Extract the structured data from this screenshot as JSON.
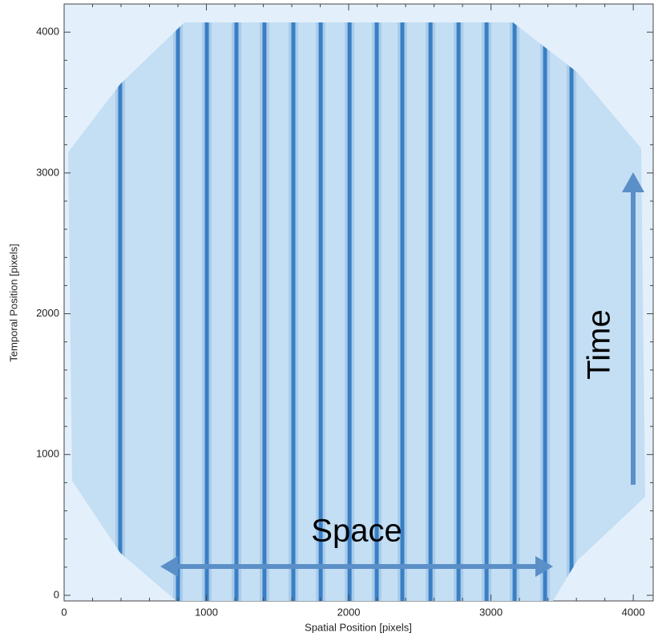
{
  "chart_data": {
    "type": "stripes",
    "xlabel": "Spatial Position [pixels]",
    "ylabel": "Temporal Position [pixels]",
    "xlim": [
      0,
      4140
    ],
    "ylim": [
      -40,
      4200
    ],
    "xticks": [
      0,
      1000,
      2000,
      3000,
      4000
    ],
    "yticks": [
      0,
      1000,
      2000,
      3000,
      4000
    ],
    "minor_xticks": [
      200,
      400,
      600,
      800,
      1200,
      1400,
      1600,
      1800,
      2200,
      2400,
      2600,
      2800,
      3200,
      3400,
      3600,
      3800
    ],
    "minor_yticks": [
      200,
      400,
      600,
      800,
      1200,
      1400,
      1600,
      1800,
      2200,
      2400,
      2600,
      2800,
      3200,
      3400,
      3600,
      3800
    ],
    "x": [
      394,
      800,
      1003,
      1211,
      1408,
      1611,
      1803,
      2006,
      2197,
      2377,
      2575,
      2772,
      2969,
      3166,
      3380,
      3566
    ],
    "color": "#1565b8",
    "annotations": [
      "Space",
      "Time"
    ]
  }
}
